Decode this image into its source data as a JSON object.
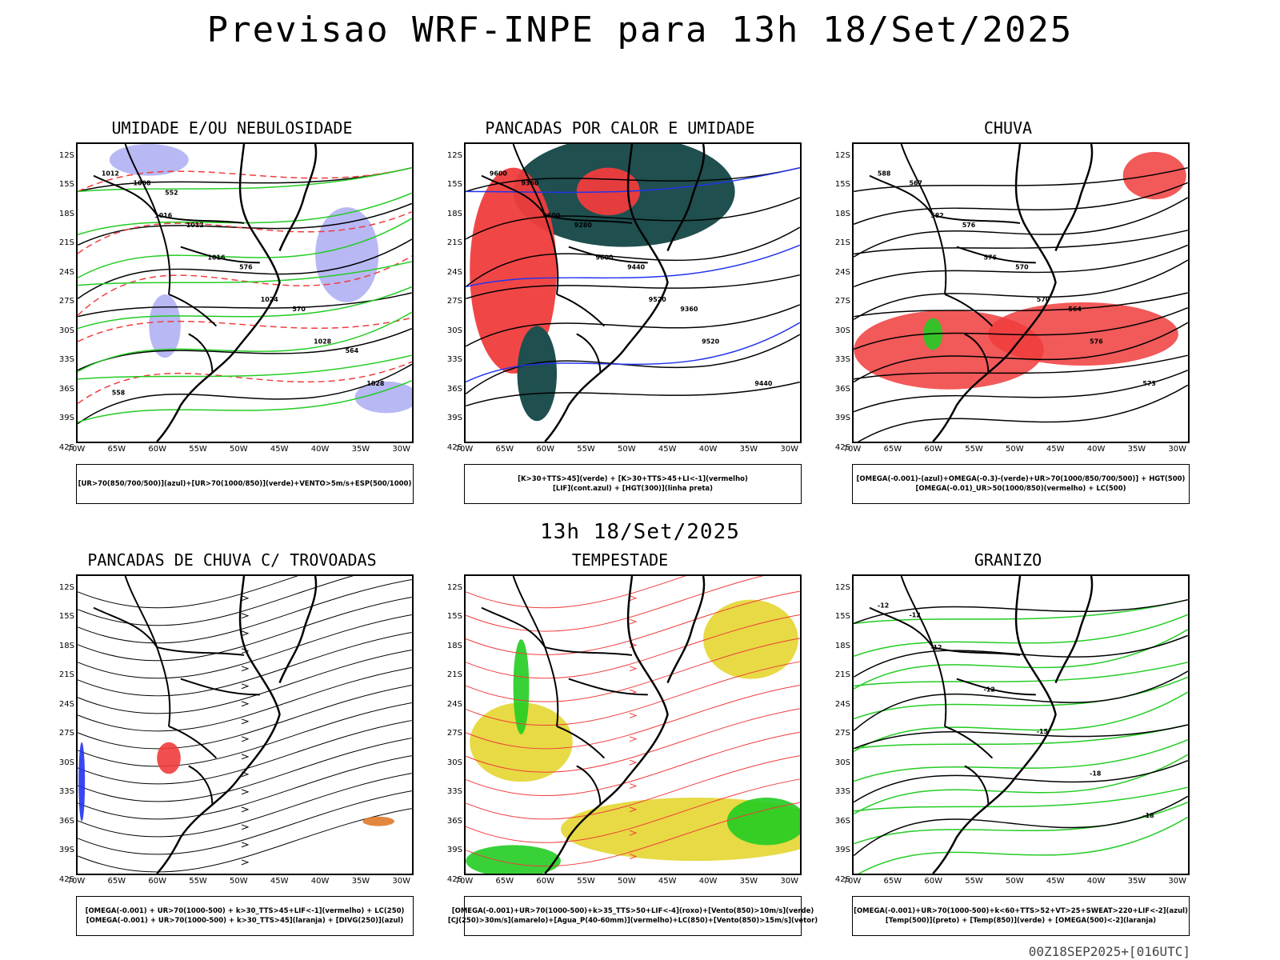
{
  "title": "Previsao WRF-INPE  para 13h 18/Set/2025",
  "subtitle": "13h 18/Set/2025",
  "run_stamp": "00Z18SEP2025+[016UTC]",
  "lat_ticks": [
    "12S",
    "15S",
    "18S",
    "21S",
    "24S",
    "27S",
    "30S",
    "33S",
    "36S",
    "39S",
    "42S"
  ],
  "lon_ticks": [
    "70W",
    "65W",
    "60W",
    "55W",
    "50W",
    "45W",
    "40W",
    "35W",
    "30W"
  ],
  "panels": [
    {
      "title": "UMIDADE E/OU NEBULOSIDADE",
      "legend": [
        "[UR>70(850/700/500)](azul)+[UR>70(1000/850)](verde)+VENTO>5m/s+ESP(500/1000)"
      ],
      "contour_labels": [
        "1012",
        "1016",
        "1016",
        "1024",
        "1028",
        "1028",
        "1008",
        "1012",
        "576",
        "570",
        "564",
        "558",
        "552"
      ]
    },
    {
      "title": "PANCADAS POR CALOR E UMIDADE",
      "legend": [
        "[K>30+TTS>45](verde) + [K>30+TTS>45+LI<-1](vermelho)",
        "[LIF](cont.azul) + [HGT(300)](linha preta)"
      ],
      "contour_labels": [
        "9600",
        "9600",
        "9600",
        "9520",
        "9520",
        "9440",
        "9360",
        "9280",
        "9440",
        "9360"
      ]
    },
    {
      "title": "CHUVA",
      "legend": [
        "[OMEGA(-0.001)-(azul)+OMEGA(-0.3)-(verde)+UR>70(1000/850/700/500)] + HGT(500)",
        "[OMEGA(-0.01)_UR>50(1000/850)(vermelho) + LC(500)"
      ],
      "contour_labels": [
        "588",
        "582",
        "576",
        "570",
        "576",
        "573",
        "567",
        "576",
        "570",
        "564"
      ]
    },
    {
      "title": "PANCADAS DE CHUVA C/ TROVOADAS",
      "legend": [
        "[OMEGA(-0.001) + UR>70(1000-500) + k>30_TTS>45+LIF<-1](vermelho) + LC(250)",
        "[OMEGA(-0.001) + UR>70(1000-500) + k>30_TTS>45](laranja) + [DIVG(250)](azul)"
      ],
      "contour_labels": []
    },
    {
      "title": "TEMPESTADE",
      "legend": [
        "[OMEGA(-0.001)+UR>70(1000-500)+k>35_TTS>50+LIF<-4](roxo)+[Vento(850)>10m/s](verde)",
        "[CJ(250)>30m/s](amarelo)+[Agua_P(40-60mm)](vermelho)+LC(850)+[Vento(850)>15m/s](vetor)"
      ],
      "contour_labels": []
    },
    {
      "title": "GRANIZO",
      "legend": [
        "[OMEGA(-0.001)+UR>70(1000-500)+k<60+TTS>52+VT>25+SWEAT>220+LIF<-2](azul)",
        "[Temp(500)](preto) + [Temp(850)](verde) + [OMEGA(500)<-2](laranja)"
      ],
      "contour_labels": [
        "-12",
        "-12",
        "-12",
        "-15",
        "-18",
        "-18",
        "-12"
      ]
    }
  ],
  "colors": {
    "blue_fill": "#a6a6f2",
    "green_line": "#22cc22",
    "red": "#f03c3c",
    "dark_teal": "#1f4f4f",
    "yellow": "#e6d83a",
    "blue_line": "#2233ee",
    "orange": "#e07a2a"
  }
}
